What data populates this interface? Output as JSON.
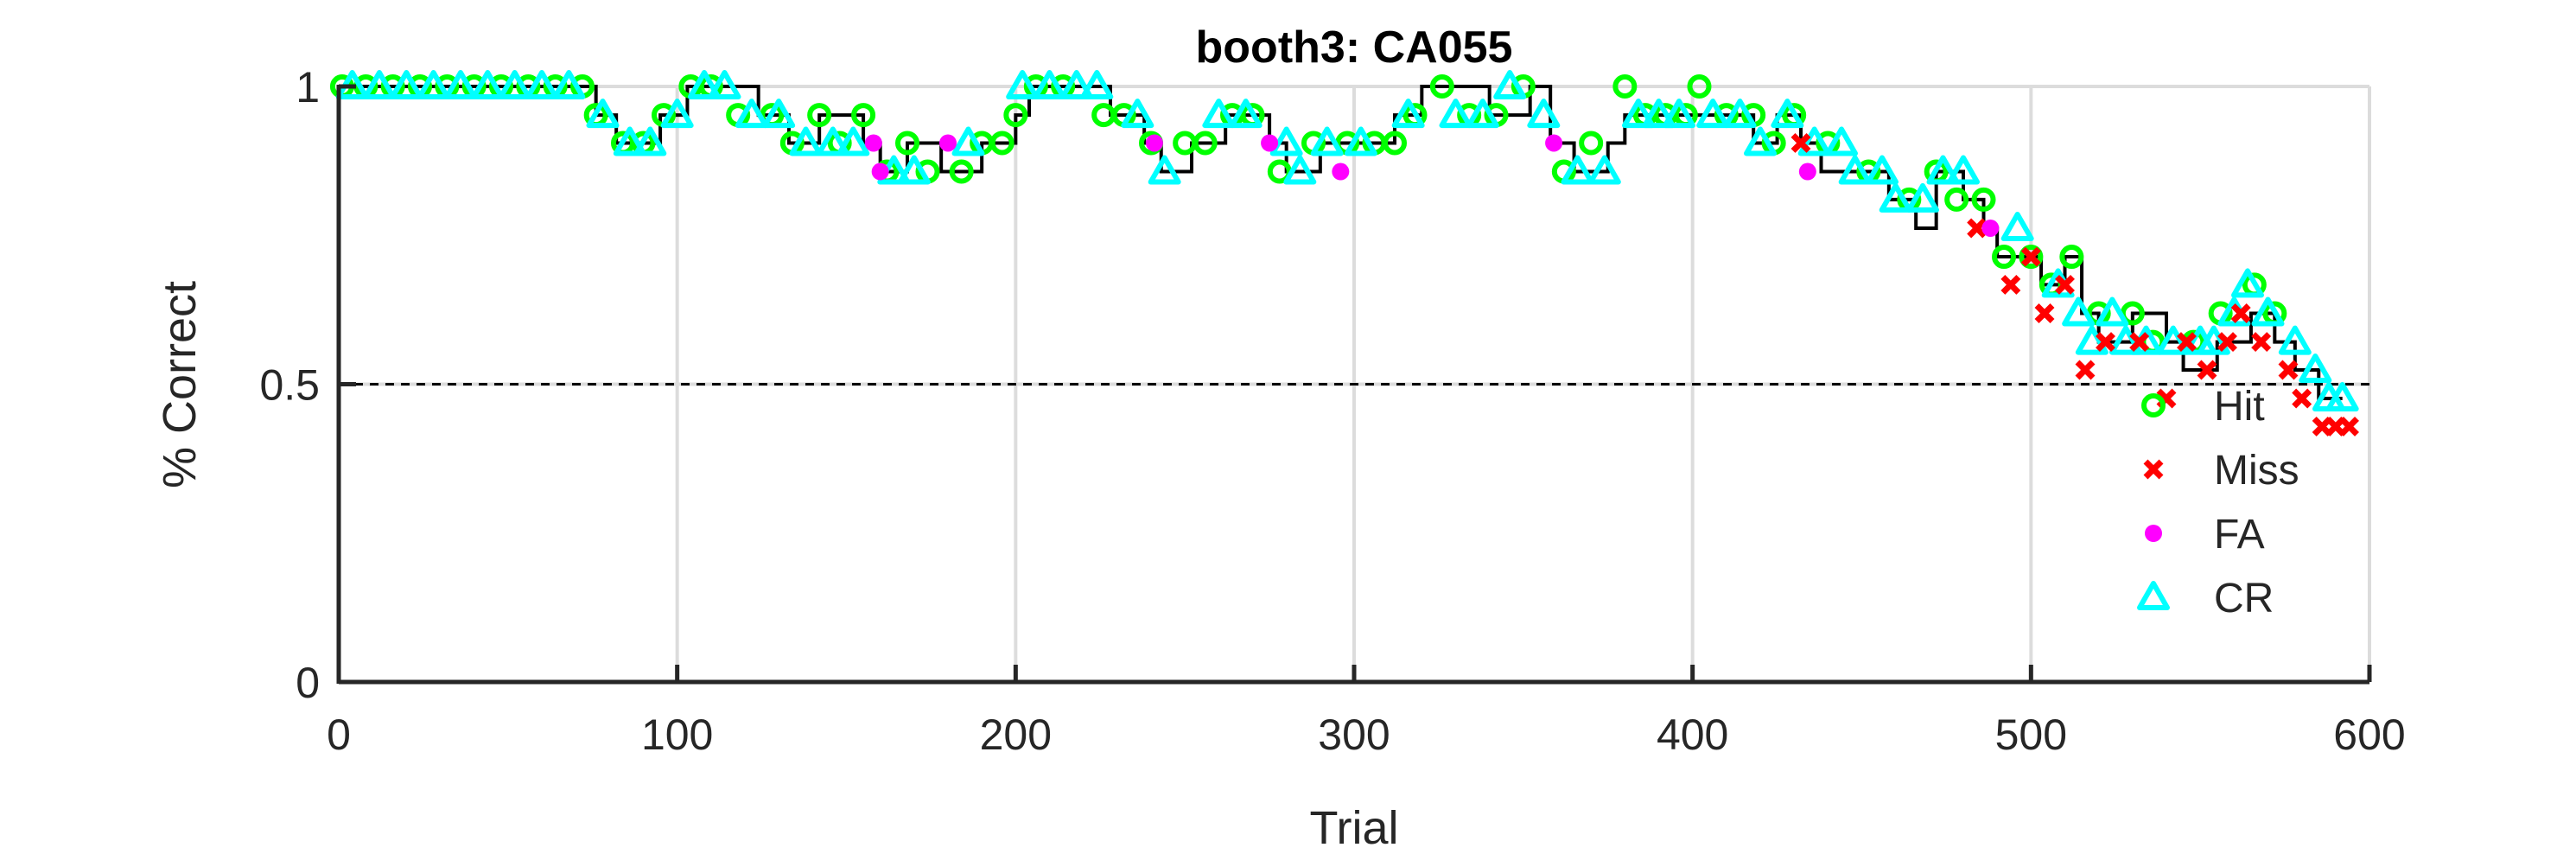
{
  "chart_data": {
    "type": "scatter",
    "title": "booth3: CA055",
    "xlabel": "Trial",
    "ylabel": "% Correct",
    "xlim": [
      0,
      600
    ],
    "ylim": [
      0,
      1
    ],
    "xticks": [
      0,
      100,
      200,
      300,
      400,
      500,
      600
    ],
    "xtick_labels": [
      "0",
      "100",
      "200",
      "300",
      "400",
      "500",
      "600"
    ],
    "yticks": [
      0,
      0.5,
      1
    ],
    "ytick_labels": [
      "0",
      "0.5",
      "1"
    ],
    "grid": true,
    "reference_line": {
      "y": 0.5,
      "style": "dashed",
      "color": "#000000"
    },
    "legend_position": "bottom-right",
    "colors": {
      "hit": "#00ff00",
      "miss": "#ff0000",
      "fa": "#ff00ff",
      "cr": "#00ffff",
      "line": "#000000",
      "grid": "#dcdcdc",
      "axis": "#262626"
    },
    "line": {
      "x": [
        0,
        72,
        76,
        82,
        95,
        103,
        115,
        124,
        133,
        142,
        155,
        160,
        168,
        178,
        190,
        200,
        204,
        222,
        228,
        238,
        243,
        252,
        262,
        275,
        280,
        290,
        300,
        312,
        320,
        340,
        352,
        358,
        365,
        375,
        380,
        395,
        410,
        418,
        425,
        432,
        438,
        448,
        458,
        466,
        472,
        480,
        486,
        490,
        497,
        503,
        510,
        515,
        520,
        530,
        540,
        545,
        555,
        565,
        572,
        578,
        585,
        592
      ],
      "y": [
        1.0,
        1.0,
        0.952,
        0.905,
        0.952,
        1.0,
        1.0,
        0.952,
        0.905,
        0.952,
        0.905,
        0.857,
        0.905,
        0.857,
        0.905,
        0.952,
        1.0,
        1.0,
        0.952,
        0.905,
        0.857,
        0.905,
        0.952,
        0.905,
        0.857,
        0.905,
        0.905,
        0.952,
        1.0,
        0.952,
        1.0,
        0.905,
        0.857,
        0.905,
        0.952,
        0.952,
        0.952,
        0.905,
        0.952,
        0.905,
        0.857,
        0.857,
        0.81,
        0.762,
        0.857,
        0.81,
        0.762,
        0.714,
        0.714,
        0.667,
        0.714,
        0.619,
        0.571,
        0.619,
        0.571,
        0.524,
        0.571,
        0.619,
        0.571,
        0.524,
        0.476,
        0.476
      ]
    },
    "series": [
      {
        "name": "Hit",
        "marker": "circle",
        "color": "#00ff00",
        "x": [
          1,
          8,
          16,
          24,
          32,
          40,
          48,
          56,
          64,
          72,
          76,
          84,
          90,
          96,
          104,
          110,
          118,
          128,
          134,
          142,
          148,
          155,
          162,
          168,
          174,
          184,
          190,
          196,
          200,
          206,
          214,
          226,
          232,
          240,
          250,
          256,
          264,
          270,
          278,
          288,
          298,
          306,
          312,
          318,
          326,
          334,
          342,
          350,
          362,
          370,
          380,
          386,
          392,
          398,
          402,
          410,
          418,
          424,
          430,
          440,
          452,
          464,
          472,
          478,
          486,
          492,
          500,
          506,
          512,
          520,
          530,
          536,
          548,
          556,
          566,
          572
        ],
        "y": [
          1.0,
          1.0,
          1.0,
          1.0,
          1.0,
          1.0,
          1.0,
          1.0,
          1.0,
          1.0,
          0.952,
          0.905,
          0.905,
          0.952,
          1.0,
          1.0,
          0.952,
          0.952,
          0.905,
          0.952,
          0.905,
          0.952,
          0.857,
          0.905,
          0.857,
          0.857,
          0.905,
          0.905,
          0.952,
          1.0,
          1.0,
          0.952,
          0.952,
          0.905,
          0.905,
          0.905,
          0.952,
          0.952,
          0.857,
          0.905,
          0.905,
          0.905,
          0.905,
          0.952,
          1.0,
          0.952,
          0.952,
          1.0,
          0.857,
          0.905,
          1.0,
          0.952,
          0.952,
          0.952,
          1.0,
          0.952,
          0.952,
          0.905,
          0.952,
          0.905,
          0.857,
          0.81,
          0.857,
          0.81,
          0.81,
          0.714,
          0.714,
          0.667,
          0.714,
          0.619,
          0.619,
          0.571,
          0.571,
          0.619,
          0.667,
          0.619
        ]
      },
      {
        "name": "Miss",
        "marker": "x",
        "color": "#ff0000",
        "x": [
          432,
          484,
          494,
          500,
          504,
          510,
          516,
          522,
          532,
          540,
          546,
          552,
          558,
          562,
          568,
          576,
          580,
          586,
          590,
          594
        ],
        "y": [
          0.905,
          0.762,
          0.667,
          0.714,
          0.619,
          0.667,
          0.524,
          0.571,
          0.571,
          0.476,
          0.571,
          0.524,
          0.571,
          0.619,
          0.571,
          0.524,
          0.476,
          0.429,
          0.429,
          0.429
        ]
      },
      {
        "name": "FA",
        "marker": "filled-circle",
        "color": "#ff00ff",
        "x": [
          158,
          160,
          180,
          241,
          275,
          296,
          359,
          434,
          488
        ],
        "y": [
          0.905,
          0.857,
          0.905,
          0.905,
          0.905,
          0.857,
          0.905,
          0.857,
          0.762
        ]
      },
      {
        "name": "CR",
        "marker": "triangle",
        "color": "#00ffff",
        "x": [
          4,
          12,
          20,
          28,
          36,
          44,
          52,
          60,
          68,
          78,
          86,
          92,
          100,
          108,
          114,
          122,
          130,
          138,
          146,
          152,
          164,
          170,
          186,
          202,
          210,
          218,
          224,
          236,
          244,
          260,
          268,
          280,
          284,
          292,
          302,
          316,
          330,
          338,
          346,
          356,
          366,
          374,
          384,
          390,
          396,
          406,
          414,
          420,
          428,
          436,
          444,
          448,
          456,
          460,
          468,
          474,
          480,
          496,
          508,
          514,
          518,
          524,
          528,
          534,
          542,
          550,
          554,
          560,
          564,
          570,
          578,
          584,
          588,
          592
        ],
        "y": [
          1.0,
          1.0,
          1.0,
          1.0,
          1.0,
          1.0,
          1.0,
          1.0,
          1.0,
          0.952,
          0.905,
          0.905,
          0.952,
          1.0,
          1.0,
          0.952,
          0.952,
          0.905,
          0.905,
          0.905,
          0.857,
          0.857,
          0.905,
          1.0,
          1.0,
          1.0,
          1.0,
          0.952,
          0.857,
          0.952,
          0.952,
          0.905,
          0.857,
          0.905,
          0.905,
          0.952,
          0.952,
          0.952,
          1.0,
          0.952,
          0.857,
          0.857,
          0.952,
          0.952,
          0.952,
          0.952,
          0.952,
          0.905,
          0.952,
          0.905,
          0.905,
          0.857,
          0.857,
          0.81,
          0.81,
          0.857,
          0.857,
          0.762,
          0.667,
          0.619,
          0.571,
          0.619,
          0.571,
          0.571,
          0.571,
          0.571,
          0.571,
          0.619,
          0.667,
          0.619,
          0.571,
          0.524,
          0.476,
          0.476
        ]
      }
    ]
  }
}
